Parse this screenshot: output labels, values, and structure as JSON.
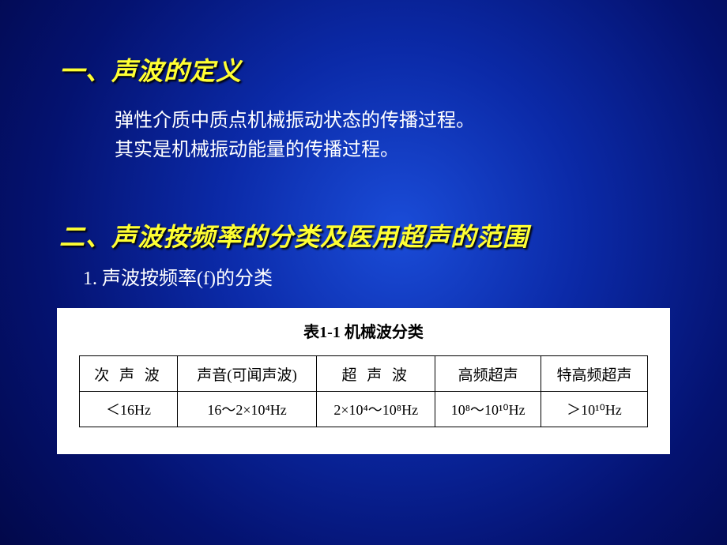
{
  "section1": {
    "title": "一、声波的定义",
    "line1": "弹性介质中质点机械振动状态的传播过程。",
    "line2": "其实是机械振动能量的传播过程。"
  },
  "section2": {
    "title": "二、声波按频率的分类及医用超声的范围",
    "sub1": "1.  声波按频率(f)的分类"
  },
  "table": {
    "caption": "表1-1  机械波分类",
    "caption_fontsize": 20,
    "border_color": "#000000",
    "background_color": "#ffffff",
    "columns": [
      {
        "header": "次 声 波",
        "value": "＜16Hz",
        "width_pct": 17
      },
      {
        "header": "声音(可闻声波)",
        "value": "16～2×10⁴Hz",
        "width_pct": 22
      },
      {
        "header": "超 声 波",
        "value": "2×10⁴～10⁸Hz",
        "width_pct": 22
      },
      {
        "header": "高频超声",
        "value": "10⁸～10¹⁰Hz",
        "width_pct": 19
      },
      {
        "header": "特高频超声",
        "value": "＞10¹⁰Hz",
        "width_pct": 20
      }
    ]
  },
  "style": {
    "heading_color": "#ffff33",
    "body_color": "#ffffff",
    "heading_fontsize": 32,
    "body_fontsize": 24,
    "background_gradient": [
      "#1a4cd8",
      "#0b2aa8",
      "#041270",
      "#02084a"
    ]
  }
}
